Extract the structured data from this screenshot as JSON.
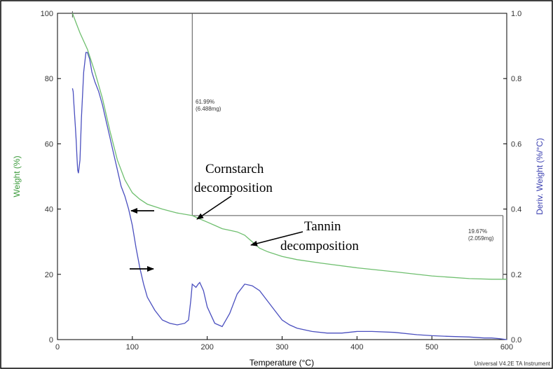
{
  "chart_data": {
    "type": "line",
    "xlabel": "Temperature (°C)",
    "ylabel_left": "Weight (%)",
    "ylabel_right": "Deriv. Weight (%/°C)",
    "xlim": [
      0,
      600
    ],
    "ylim_left": [
      0,
      100
    ],
    "ylim_right": [
      0,
      1.0
    ],
    "x_ticks": [
      0,
      100,
      200,
      300,
      400,
      500,
      600
    ],
    "x_tick_labels": [
      "0",
      "100",
      "200",
      "300",
      "400",
      "500",
      "600"
    ],
    "y_left_ticks": [
      0,
      20,
      40,
      60,
      80,
      100
    ],
    "y_left_tick_labels": [
      "0",
      "20",
      "40",
      "60",
      "80",
      "100"
    ],
    "y_right_ticks": [
      0,
      0.2,
      0.4,
      0.6,
      0.8,
      1.0
    ],
    "y_right_tick_labels": [
      "0.0",
      "0.2",
      "0.4",
      "0.6",
      "0.8",
      "1.0"
    ],
    "grid": false,
    "colors": {
      "weight": "#6fbf6f",
      "deriv": "#4a4fbf",
      "left_axis_text": "#3a9a3a",
      "right_axis_text": "#3a3fb0",
      "marker": "#555555",
      "arrow": "#000000"
    },
    "series": [
      {
        "axis": "left",
        "x": [
          20,
          25,
          30,
          40,
          50,
          60,
          70,
          80,
          90,
          100,
          110,
          120,
          140,
          160,
          180,
          190,
          200,
          210,
          220,
          230,
          240,
          250,
          260,
          270,
          280,
          300,
          320,
          350,
          400,
          450,
          500,
          550,
          580,
          600
        ],
        "y": [
          100,
          97,
          94,
          89,
          82,
          74,
          64,
          55,
          49,
          45,
          43,
          41.5,
          40,
          38.8,
          38,
          37,
          36,
          35,
          34,
          33.5,
          33,
          32,
          30,
          28,
          27,
          25.5,
          24.5,
          23.5,
          22,
          20.8,
          19.5,
          18.7,
          18.5,
          18.5
        ]
      },
      {
        "axis": "right",
        "x": [
          20,
          21,
          22,
          24,
          25,
          26,
          27,
          28,
          30,
          32,
          35,
          38,
          40,
          43,
          46,
          50,
          55,
          60,
          65,
          70,
          75,
          80,
          85,
          90,
          95,
          100,
          105,
          110,
          115,
          120,
          130,
          140,
          150,
          160,
          170,
          175,
          178,
          180,
          185,
          188,
          190,
          195,
          200,
          210,
          220,
          230,
          240,
          250,
          260,
          270,
          280,
          290,
          300,
          310,
          320,
          340,
          360,
          380,
          400,
          420,
          450,
          480,
          500,
          520,
          550,
          570,
          580,
          590,
          600
        ],
        "y": [
          0.77,
          0.76,
          0.72,
          0.65,
          0.61,
          0.56,
          0.52,
          0.51,
          0.55,
          0.68,
          0.82,
          0.88,
          0.88,
          0.86,
          0.82,
          0.79,
          0.76,
          0.72,
          0.67,
          0.62,
          0.57,
          0.52,
          0.47,
          0.44,
          0.4,
          0.35,
          0.28,
          0.22,
          0.17,
          0.13,
          0.09,
          0.06,
          0.05,
          0.045,
          0.05,
          0.06,
          0.12,
          0.17,
          0.16,
          0.17,
          0.175,
          0.15,
          0.1,
          0.05,
          0.04,
          0.08,
          0.14,
          0.17,
          0.165,
          0.15,
          0.12,
          0.09,
          0.06,
          0.045,
          0.035,
          0.025,
          0.02,
          0.02,
          0.025,
          0.025,
          0.022,
          0.015,
          0.012,
          0.01,
          0.008,
          0.005,
          0.005,
          0.003,
          0.0
        ]
      }
    ],
    "markers": {
      "v_marker_x": 180,
      "v_marker_y_left": 38,
      "h_marker_y_left": 38,
      "h_marker_x_start": 180,
      "h_marker_x_end": 595,
      "step_bottom_y_left": 18.5
    },
    "annotations": {
      "step1_percent": "61.99%",
      "step1_mg": "(6.488mg)",
      "step2_percent": "19.67%",
      "step2_mg": "(2.059mg)",
      "cornstarch_line1": "Cornstarch",
      "cornstarch_line2": "decomposition",
      "tannin_line1": "Tannin",
      "tannin_line2": "decomposition"
    },
    "footer": "Universal V4.2E TA Instrument"
  }
}
